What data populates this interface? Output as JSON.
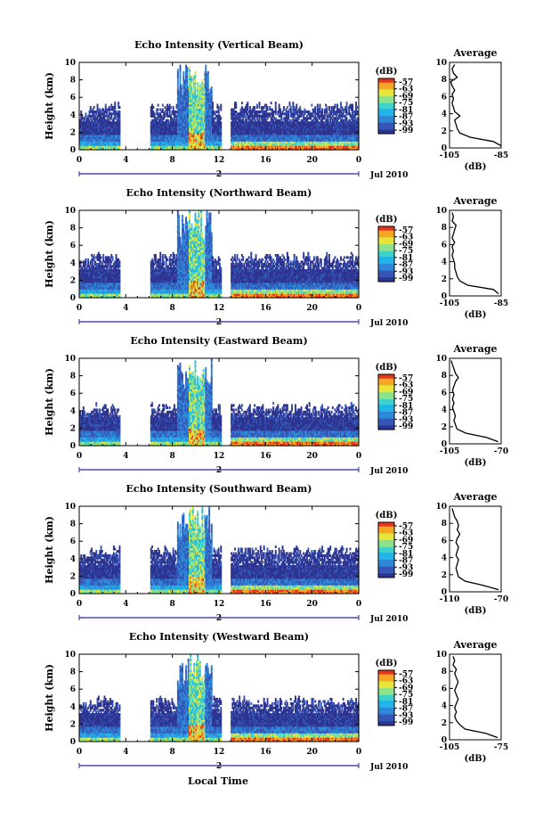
{
  "figure": {
    "xlabel": "Local Time",
    "date_label": "Jul 2010",
    "day_label": "2",
    "cbar_unit": "(dB)",
    "avg_title": "Average",
    "avg_xlabel": "(dB)"
  },
  "chart_data": [
    {
      "type": "heatmap",
      "title": "Echo Intensity (Vertical Beam)",
      "xlabel": "Local Time",
      "ylabel": "Height (km)",
      "xlim": [
        0,
        24
      ],
      "xticks": [
        "0",
        "4",
        "8",
        "12",
        "16",
        "20",
        "0"
      ],
      "ylim": [
        0,
        10
      ],
      "yticks": [
        "0",
        "2",
        "4",
        "6",
        "8",
        "10"
      ],
      "colorbar": {
        "label": "(dB)",
        "ticks": [
          "-57",
          "-63",
          "-69",
          "-75",
          "-81",
          "-87",
          "-93",
          "-99"
        ]
      },
      "data_gaps_hours": [
        [
          3.5,
          6.0
        ],
        [
          12.1,
          12.9
        ]
      ],
      "echo_top_km": 4.8,
      "convection_hours": [
        8.3,
        11.3
      ],
      "inset": {
        "title": "Average",
        "xlabel": "(dB)",
        "xticks": [
          "-105",
          "-85"
        ],
        "xlim": [
          -105,
          -85
        ],
        "height_km": [
          0,
          0.5,
          1,
          1.5,
          2,
          2.5,
          3,
          3.5,
          4,
          4.5,
          5,
          5.5,
          6,
          6.5,
          7,
          7.5,
          8,
          8.5,
          9,
          9.5
        ],
        "values_db": [
          -85,
          -88,
          -97,
          -101,
          -102,
          -102.5,
          -103,
          -101,
          -103,
          -103.5,
          -104,
          -103.5,
          -104,
          -103,
          -104,
          -104.5,
          -102,
          -103.5,
          -104,
          -103
        ]
      }
    },
    {
      "type": "heatmap",
      "title": "Echo Intensity (Northward Beam)",
      "xlabel": "Local Time",
      "ylabel": "Height (km)",
      "xlim": [
        0,
        24
      ],
      "xticks": [
        "0",
        "4",
        "8",
        "12",
        "16",
        "20",
        "0"
      ],
      "ylim": [
        0,
        10
      ],
      "yticks": [
        "0",
        "2",
        "4",
        "6",
        "8",
        "10"
      ],
      "colorbar": {
        "label": "(dB)",
        "ticks": [
          "-57",
          "-63",
          "-69",
          "-75",
          "-81",
          "-87",
          "-93",
          "-99"
        ]
      },
      "data_gaps_hours": [
        [
          3.5,
          6.0
        ],
        [
          12.1,
          12.9
        ]
      ],
      "echo_top_km": 4.5,
      "convection_hours": [
        8.3,
        11.3
      ],
      "inset": {
        "title": "Average",
        "xlabel": "(dB)",
        "xticks": [
          "-105",
          "-85"
        ],
        "xlim": [
          -105,
          -85
        ],
        "height_km": [
          0,
          0.5,
          1,
          1.5,
          2,
          2.5,
          3,
          3.5,
          4,
          4.5,
          5,
          5.5,
          6,
          6.5,
          7,
          7.5,
          8,
          8.5,
          9,
          9.5
        ],
        "values_db": [
          -86,
          -88,
          -98,
          -101,
          -102,
          -102.5,
          -103,
          -103,
          -103.5,
          -104,
          -103.5,
          -104,
          -103,
          -104,
          -103.5,
          -103,
          -102.5,
          -104,
          -103.5,
          -104
        ]
      }
    },
    {
      "type": "heatmap",
      "title": "Echo Intensity (Eastward Beam)",
      "xlabel": "Local Time",
      "ylabel": "Height (km)",
      "xlim": [
        0,
        24
      ],
      "xticks": [
        "0",
        "4",
        "8",
        "12",
        "16",
        "20",
        "0"
      ],
      "ylim": [
        0,
        10
      ],
      "yticks": [
        "0",
        "2",
        "4",
        "6",
        "8",
        "10"
      ],
      "colorbar": {
        "label": "(dB)",
        "ticks": [
          "-57",
          "-63",
          "-69",
          "-75",
          "-81",
          "-87",
          "-93",
          "-99"
        ]
      },
      "data_gaps_hours": [
        [
          3.5,
          6.0
        ],
        [
          12.1,
          12.9
        ]
      ],
      "echo_top_km": 4.2,
      "convection_hours": [
        8.3,
        11.3
      ],
      "inset": {
        "title": "Average",
        "xlabel": "(dB)",
        "xticks": [
          "-105",
          "-70"
        ],
        "xlim": [
          -105,
          -70
        ],
        "height_km": [
          0,
          0.5,
          1,
          1.5,
          2,
          2.5,
          3,
          3.5,
          4,
          4.5,
          5,
          5.5,
          6,
          6.5,
          7,
          7.5,
          8,
          8.5,
          9,
          9.5
        ],
        "values_db": [
          -72,
          -80,
          -94,
          -100,
          -101,
          -102,
          -101,
          -102,
          -103,
          -102,
          -103,
          -102,
          -103,
          -102,
          -101,
          -99,
          -101,
          -102,
          -103,
          -104
        ]
      }
    },
    {
      "type": "heatmap",
      "title": "Echo Intensity (Southward Beam)",
      "xlabel": "Local Time",
      "ylabel": "Height (km)",
      "xlim": [
        0,
        24
      ],
      "xticks": [
        "0",
        "4",
        "8",
        "12",
        "16",
        "20",
        "0"
      ],
      "ylim": [
        0,
        10
      ],
      "yticks": [
        "0",
        "2",
        "4",
        "6",
        "8",
        "10"
      ],
      "colorbar": {
        "label": "(dB)",
        "ticks": [
          "-57",
          "-63",
          "-69",
          "-75",
          "-81",
          "-87",
          "-93",
          "-99"
        ]
      },
      "data_gaps_hours": [
        [
          3.5,
          6.0
        ],
        [
          12.1,
          12.9
        ]
      ],
      "echo_top_km": 4.8,
      "convection_hours": [
        8.3,
        11.3
      ],
      "inset": {
        "title": "Average",
        "xlabel": "(dB)",
        "xticks": [
          "-110",
          "-70"
        ],
        "xlim": [
          -110,
          -70
        ],
        "height_km": [
          0,
          0.5,
          1,
          1.5,
          2,
          2.5,
          3,
          3.5,
          4,
          4.5,
          5,
          5.5,
          6,
          6.5,
          7,
          7.5,
          8,
          8.5,
          9,
          9.5
        ],
        "values_db": [
          -72,
          -84,
          -98,
          -103,
          -104,
          -105,
          -104,
          -103,
          -105,
          -104,
          -103,
          -105,
          -104,
          -102,
          -104,
          -103,
          -104,
          -106,
          -107,
          -108
        ]
      }
    },
    {
      "type": "heatmap",
      "title": "Echo Intensity (Westward Beam)",
      "xlabel": "Local Time",
      "ylabel": "Height (km)",
      "xlim": [
        0,
        24
      ],
      "xticks": [
        "0",
        "4",
        "8",
        "12",
        "16",
        "20",
        "0"
      ],
      "ylim": [
        0,
        10
      ],
      "yticks": [
        "0",
        "2",
        "4",
        "6",
        "8",
        "10"
      ],
      "colorbar": {
        "label": "(dB)",
        "ticks": [
          "-57",
          "-63",
          "-69",
          "-75",
          "-81",
          "-87",
          "-93",
          "-99"
        ]
      },
      "data_gaps_hours": [
        [
          3.5,
          6.0
        ],
        [
          12.1,
          12.9
        ]
      ],
      "echo_top_km": 4.5,
      "convection_hours": [
        8.3,
        11.3
      ],
      "inset": {
        "title": "Average",
        "xlabel": "(dB)",
        "xticks": [
          "-105",
          "-75"
        ],
        "xlim": [
          -105,
          -75
        ],
        "height_km": [
          0,
          0.5,
          1,
          1.5,
          2,
          2.5,
          3,
          3.5,
          4,
          4.5,
          5,
          5.5,
          6,
          6.5,
          7,
          7.5,
          8,
          8.5,
          9,
          9.5
        ],
        "values_db": [
          -77,
          -84,
          -96,
          -99,
          -101,
          -102,
          -101,
          -102,
          -101,
          -100,
          -101,
          -102,
          -101,
          -100,
          -101,
          -102,
          -101,
          -103,
          -102,
          -103
        ]
      }
    }
  ],
  "colors": {
    "scale": [
      "#2e3590",
      "#3457b8",
      "#2f88d8",
      "#22b6e8",
      "#3fd2c8",
      "#8be28a",
      "#e6e63a",
      "#f5a623",
      "#e8341c"
    ]
  }
}
